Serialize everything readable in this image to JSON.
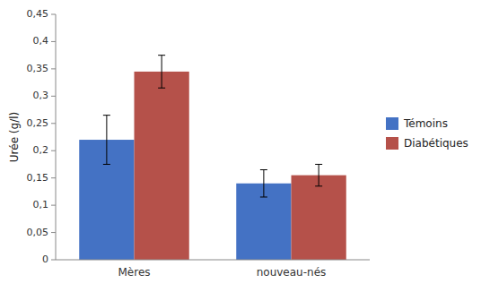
{
  "chart_data": {
    "type": "bar",
    "categories": [
      "Mères",
      "nouveau-nés"
    ],
    "series": [
      {
        "name": "Témoins",
        "color": "#4472C4",
        "values": [
          0.22,
          0.14
        ],
        "errors": [
          0.045,
          0.025
        ]
      },
      {
        "name": "Diabétiques",
        "color": "#B5514A",
        "values": [
          0.345,
          0.155
        ],
        "errors": [
          0.03,
          0.02
        ]
      }
    ],
    "ylabel": "Urée (g/l)",
    "ylim": [
      0,
      0.45
    ],
    "yticks": [
      0,
      {
        "value": 0.05,
        "label": "0,05"
      },
      {
        "value": 0.1,
        "label": "0,1"
      },
      {
        "value": 0.15,
        "label": "0,15"
      },
      {
        "value": 0.2,
        "label": "0,2"
      },
      {
        "value": 0.25,
        "label": "0,25"
      },
      {
        "value": 0.3,
        "label": "0,3"
      },
      {
        "value": 0.35,
        "label": "0,35"
      },
      {
        "value": 0.4,
        "label": "0,4"
      },
      {
        "value": 0.45,
        "label": "0,45"
      }
    ],
    "grid": false,
    "legend": "right"
  }
}
